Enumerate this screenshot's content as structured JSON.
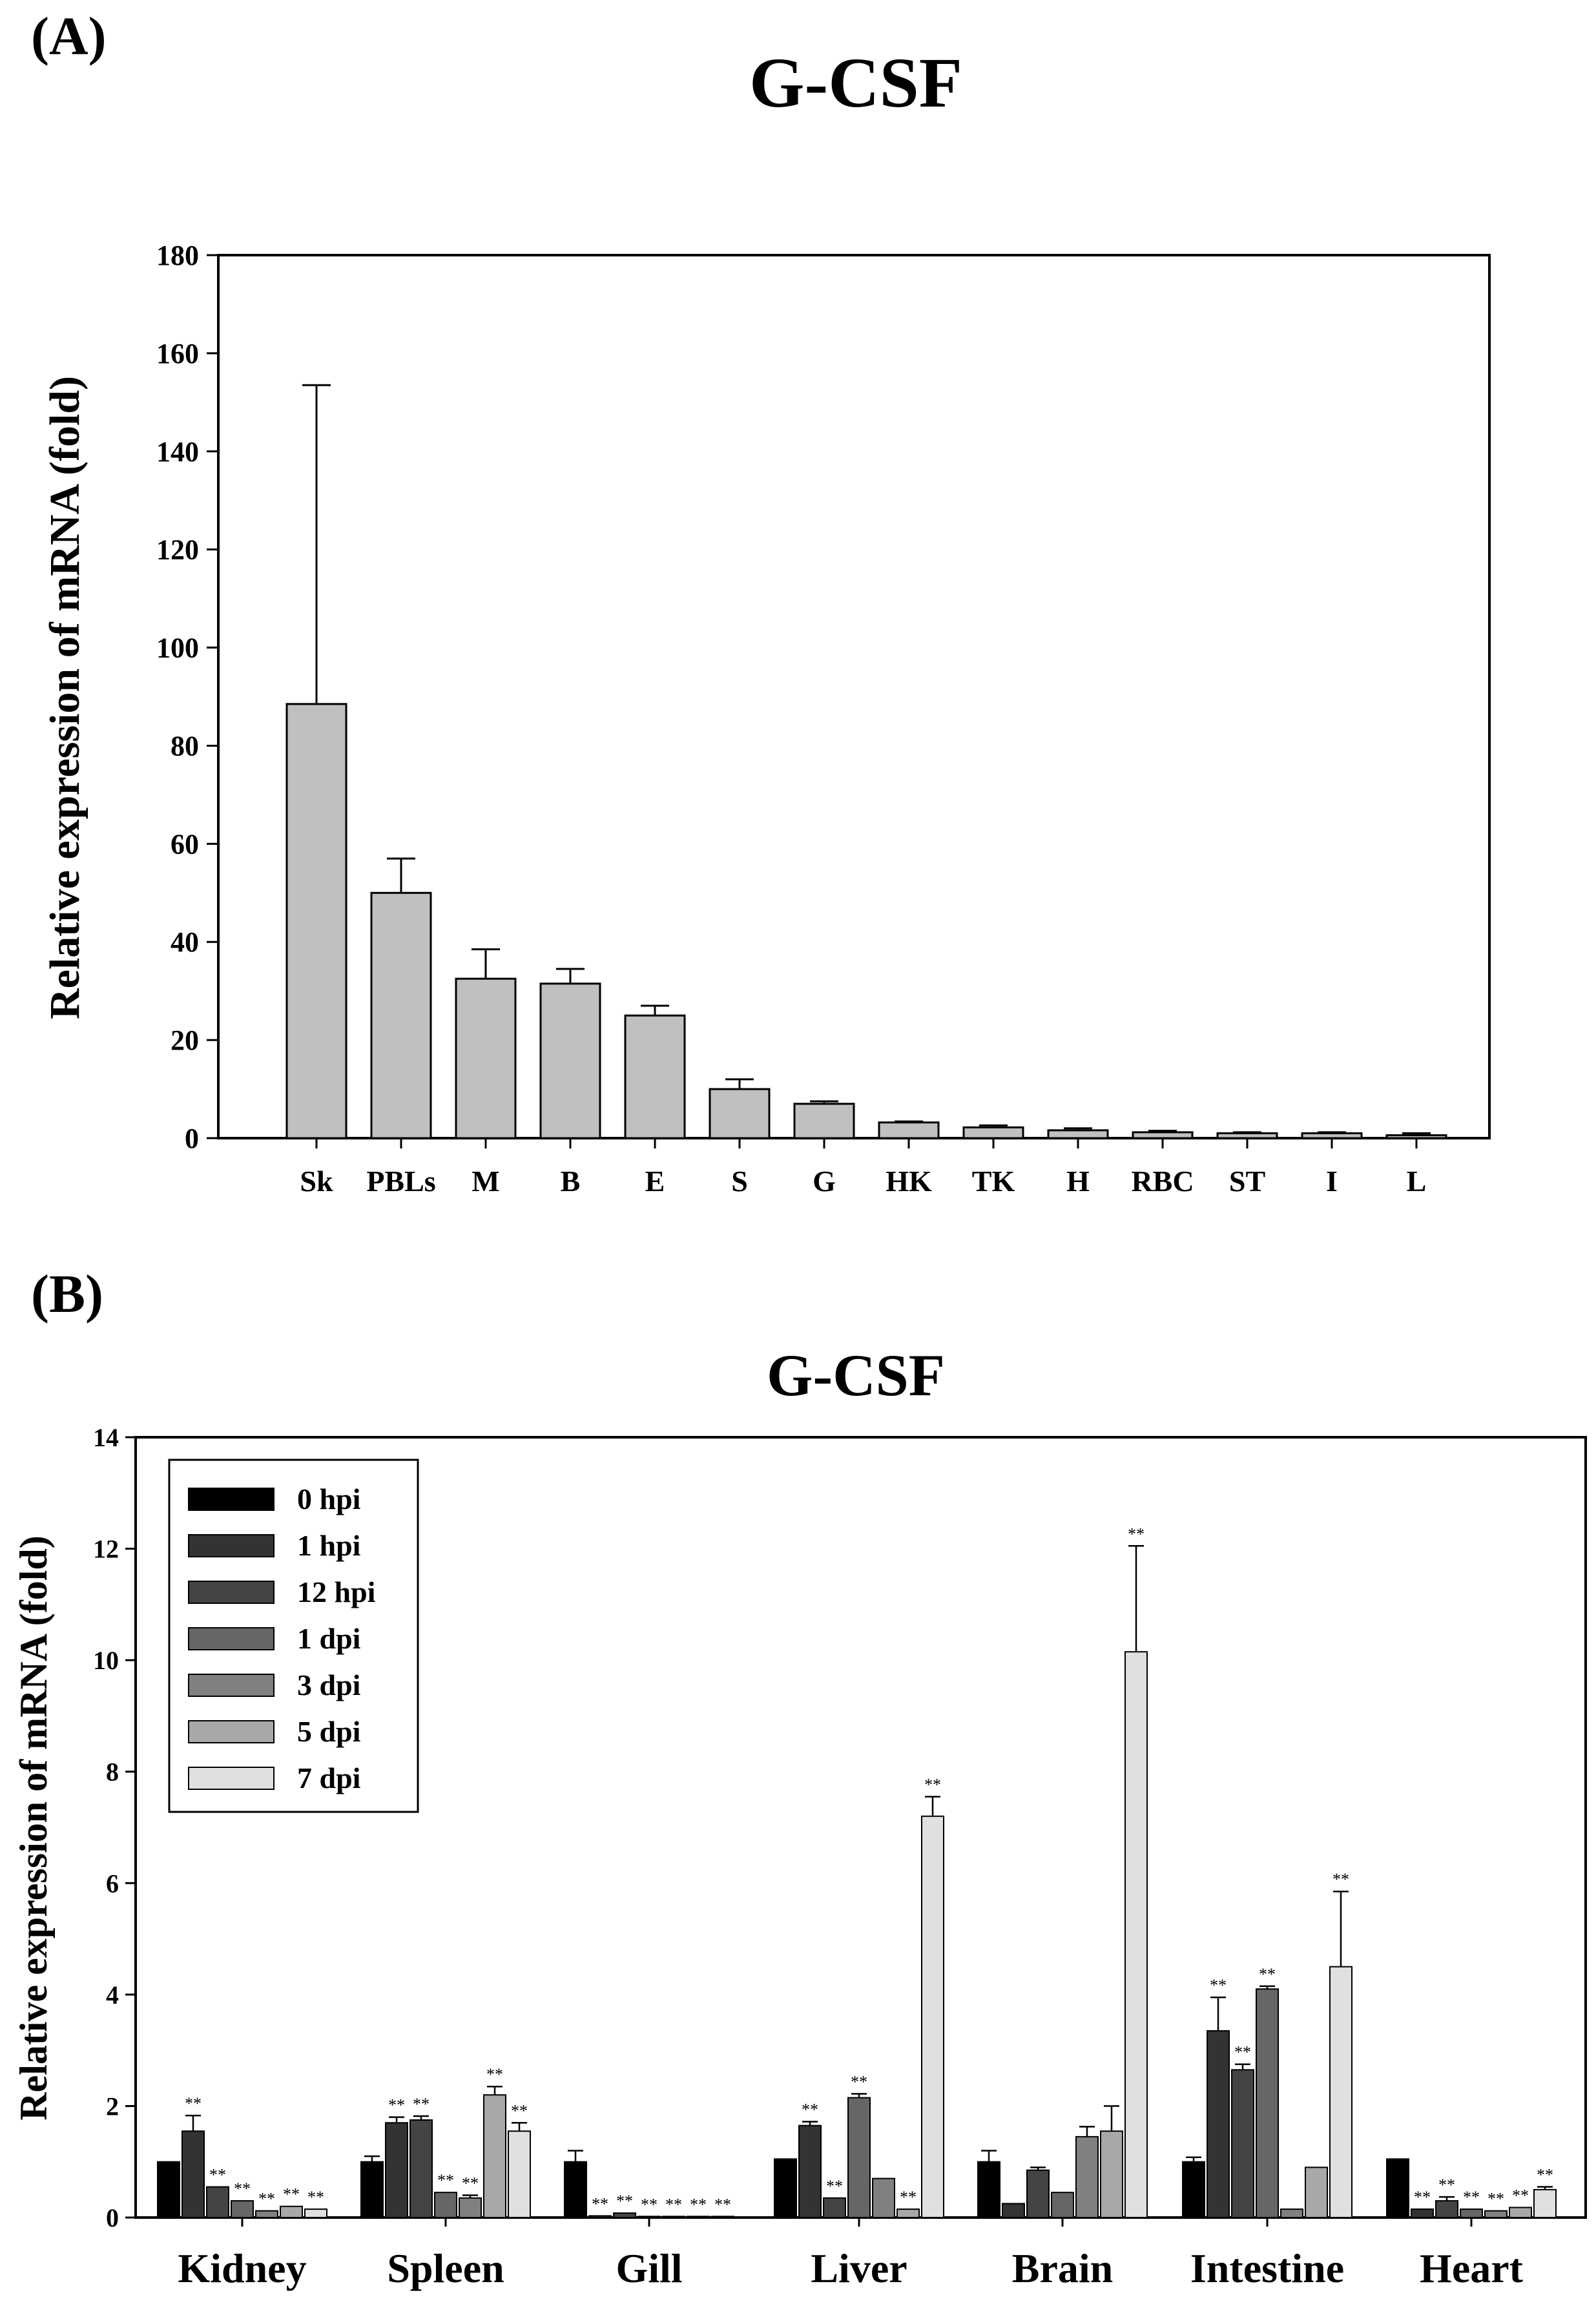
{
  "panel_a_label": "(A)",
  "panel_b_label": "(B)",
  "chart_data": [
    {
      "type": "bar",
      "title": "G-CSF",
      "xlabel": "",
      "ylabel": "Relative expression of mRNA (fold)",
      "ylim": [
        0,
        180
      ],
      "yticks": [
        0,
        20,
        40,
        60,
        80,
        100,
        120,
        140,
        160,
        180
      ],
      "categories": [
        "Sk",
        "PBLs",
        "M",
        "B",
        "E",
        "S",
        "G",
        "HK",
        "TK",
        "H",
        "RBC",
        "ST",
        "I",
        "L"
      ],
      "values": [
        88.5,
        50,
        32.5,
        31.5,
        25,
        10,
        7,
        3.2,
        2.2,
        1.6,
        1.2,
        1.0,
        1.0,
        0.6
      ],
      "errors": [
        65,
        7,
        6,
        3,
        2,
        2,
        0.5,
        0.2,
        0.4,
        0.4,
        0.3,
        0.2,
        0.2,
        0.4
      ],
      "bar_color": "#c0c0c0"
    },
    {
      "type": "bar",
      "title": "G-CSF",
      "xlabel": "",
      "ylabel": "Relative expression of mRNA (fold)",
      "ylim": [
        0,
        14
      ],
      "yticks": [
        0,
        2,
        4,
        6,
        8,
        10,
        12,
        14
      ],
      "legend_position": "top-left",
      "categories": [
        "Kidney",
        "Spleen",
        "Gill",
        "Liver",
        "Brain",
        "Intestine",
        "Heart"
      ],
      "significance_mark": "**",
      "series": [
        {
          "name": "0 hpi",
          "color": "#000000",
          "values": [
            1.0,
            1.0,
            1.0,
            1.05,
            1.0,
            1.0,
            1.05
          ],
          "errors": [
            0.0,
            0.1,
            0.2,
            0.0,
            0.2,
            0.08,
            0.0
          ],
          "sig": [
            false,
            false,
            false,
            false,
            false,
            false,
            false
          ]
        },
        {
          "name": "1 hpi",
          "color": "#333333",
          "values": [
            1.55,
            1.7,
            0.03,
            1.65,
            0.25,
            3.35,
            0.15
          ],
          "errors": [
            0.28,
            0.1,
            0.0,
            0.07,
            0.0,
            0.6,
            0.0
          ],
          "sig": [
            true,
            true,
            true,
            true,
            false,
            true,
            true
          ]
        },
        {
          "name": "12 hpi",
          "color": "#444444",
          "values": [
            0.55,
            1.75,
            0.08,
            0.35,
            0.85,
            2.65,
            0.3
          ],
          "errors": [
            0.0,
            0.07,
            0.0,
            0.0,
            0.05,
            0.1,
            0.07
          ],
          "sig": [
            true,
            true,
            true,
            true,
            false,
            true,
            true
          ]
        },
        {
          "name": "1 dpi",
          "color": "#666666",
          "values": [
            0.3,
            0.45,
            0.02,
            2.15,
            0.45,
            4.1,
            0.15
          ],
          "errors": [
            0.0,
            0.0,
            0.0,
            0.07,
            0.0,
            0.05,
            0.0
          ],
          "sig": [
            true,
            true,
            true,
            true,
            false,
            true,
            true
          ]
        },
        {
          "name": "3 dpi",
          "color": "#808080",
          "values": [
            0.12,
            0.35,
            0.02,
            0.7,
            1.45,
            0.15,
            0.12
          ],
          "errors": [
            0.0,
            0.05,
            0.0,
            0.0,
            0.18,
            0.0,
            0.0
          ],
          "sig": [
            true,
            true,
            true,
            false,
            false,
            false,
            true
          ]
        },
        {
          "name": "5 dpi",
          "color": "#a8a8a8",
          "values": [
            0.2,
            2.2,
            0.02,
            0.15,
            1.55,
            0.9,
            0.18
          ],
          "errors": [
            0.0,
            0.15,
            0.0,
            0.0,
            0.45,
            0.0,
            0.0
          ],
          "sig": [
            true,
            true,
            true,
            true,
            false,
            false,
            true
          ]
        },
        {
          "name": "7 dpi",
          "color": "#e0e0e0",
          "values": [
            0.15,
            1.55,
            0.02,
            7.2,
            10.15,
            4.5,
            0.5
          ],
          "errors": [
            0.0,
            0.15,
            0.0,
            0.35,
            1.9,
            1.35,
            0.05
          ],
          "sig": [
            true,
            true,
            true,
            true,
            true,
            true,
            true
          ]
        }
      ]
    }
  ]
}
